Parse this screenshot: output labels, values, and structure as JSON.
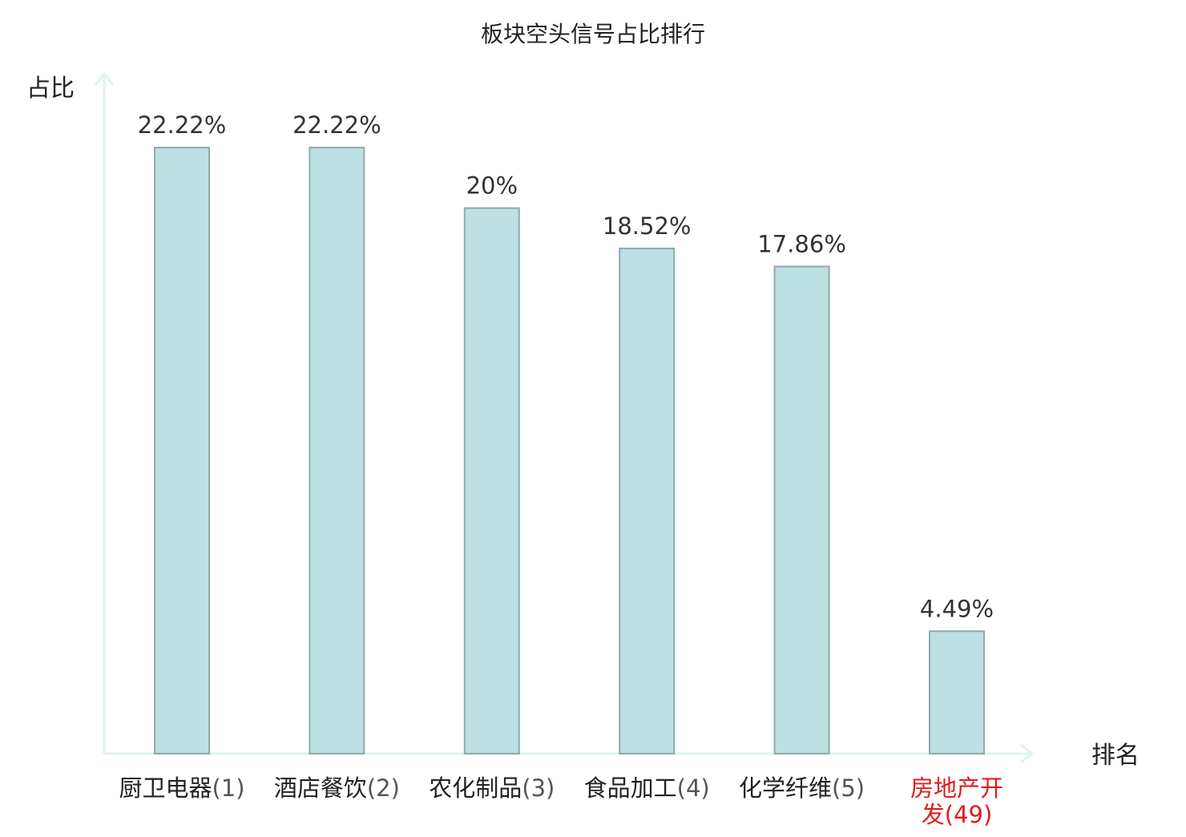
{
  "chart_data": {
    "type": "bar",
    "title": "板块空头信号占比排行",
    "ylabel": "占比",
    "xlabel": "排名",
    "ylim": [
      0,
      25
    ],
    "grid": false,
    "legend": "none",
    "unit": "%",
    "categories": [
      {
        "name": "厨卫电器",
        "rank": "(1)",
        "highlight": false
      },
      {
        "name": "酒店餐饮",
        "rank": "(2)",
        "highlight": false
      },
      {
        "name": "农化制品",
        "rank": "(3)",
        "highlight": false
      },
      {
        "name": "食品加工",
        "rank": "(4)",
        "highlight": false
      },
      {
        "name": "化学纤维",
        "rank": "(5)",
        "highlight": false
      },
      {
        "name": "房地产开发",
        "rank": "(49)",
        "highlight": true
      }
    ],
    "values": [
      22.22,
      22.22,
      20,
      18.52,
      17.86,
      4.49
    ],
    "value_labels": [
      "22.22%",
      "22.22%",
      "20%",
      "18.52%",
      "17.86%",
      "4.49%"
    ]
  },
  "colors": {
    "bar_fill": "#bde0e3",
    "bar_stroke": "#8faaab",
    "axis": "#dff2ef",
    "text": "#222222",
    "value_text": "#333333",
    "rank_text": "#555555",
    "highlight": "#e31a1c"
  }
}
